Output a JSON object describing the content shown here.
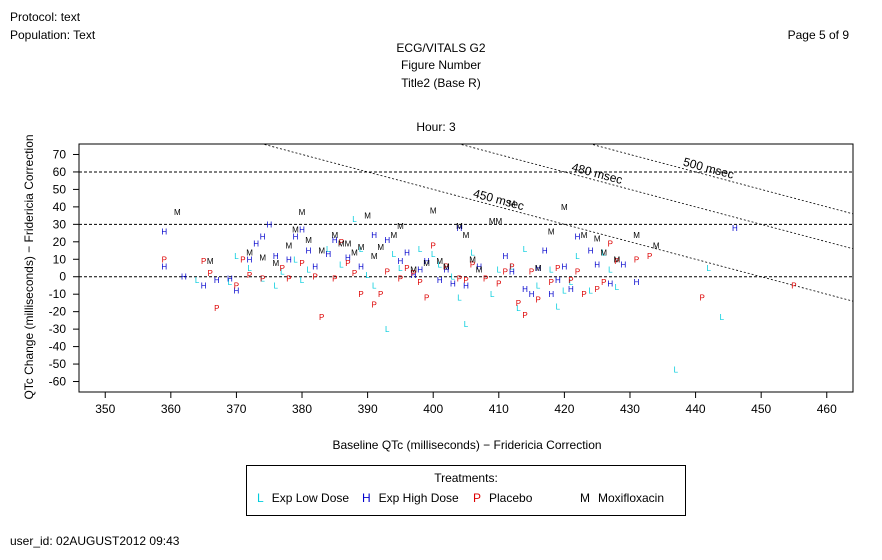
{
  "header": {
    "protocol": "Protocol: text",
    "population": "Population: Text",
    "page": "Page 5 of 9",
    "title1": "ECG/VITALS G2",
    "title2": "Figure Number",
    "title3": "Title2 (Base R)"
  },
  "footer": {
    "user_id": "user_id:  02AUGUST2012 09:43"
  },
  "colors": {
    "L": "#00ccdd",
    "H": "#0000cc",
    "P": "#dd0000",
    "M": "#000000"
  },
  "chart_data": {
    "type": "scatter",
    "title": "Hour: 3",
    "xlabel": "Baseline QTc (milliseconds) − Fridericia Correction",
    "ylabel": "QTc Change (milliseconds) − Fridericia Correction",
    "xlim": [
      346,
      464
    ],
    "ylim": [
      -66,
      76
    ],
    "xticks": [
      350,
      360,
      370,
      380,
      390,
      400,
      410,
      420,
      430,
      440,
      450,
      460
    ],
    "yticks": [
      70,
      60,
      50,
      40,
      30,
      20,
      10,
      0,
      -10,
      -20,
      -30,
      -40,
      -50,
      -60
    ],
    "hlines": [
      60,
      30,
      0
    ],
    "reference_lines": [
      {
        "label": "450 msec",
        "sum": 450
      },
      {
        "label": "480 msec",
        "sum": 480
      },
      {
        "label": "500 msec",
        "sum": 500
      }
    ],
    "legend": {
      "title": "Treatments:",
      "items": [
        {
          "marker": "L",
          "label": "Exp Low Dose"
        },
        {
          "marker": "H",
          "label": "Exp High Dose"
        },
        {
          "marker": "P",
          "label": "Placebo"
        },
        {
          "marker": "M",
          "label": "Moxifloxacin"
        }
      ]
    },
    "series": [
      {
        "marker": "L",
        "points": [
          [
            364,
            -2
          ],
          [
            369,
            -3
          ],
          [
            370,
            12
          ],
          [
            372,
            5
          ],
          [
            374,
            -1
          ],
          [
            376,
            -5
          ],
          [
            377,
            3
          ],
          [
            379,
            10
          ],
          [
            380,
            -2
          ],
          [
            381,
            4
          ],
          [
            384,
            16
          ],
          [
            386,
            7
          ],
          [
            388,
            33
          ],
          [
            389,
            16
          ],
          [
            390,
            1
          ],
          [
            391,
            -5
          ],
          [
            393,
            -30
          ],
          [
            394,
            13
          ],
          [
            395,
            5
          ],
          [
            398,
            16
          ],
          [
            400,
            13
          ],
          [
            401,
            7
          ],
          [
            403,
            0
          ],
          [
            404,
            -12
          ],
          [
            405,
            -27
          ],
          [
            406,
            14
          ],
          [
            409,
            -10
          ],
          [
            410,
            4
          ],
          [
            412,
            6
          ],
          [
            413,
            -18
          ],
          [
            414,
            16
          ],
          [
            416,
            -5
          ],
          [
            418,
            4
          ],
          [
            419,
            -17
          ],
          [
            420,
            -8
          ],
          [
            421,
            -3
          ],
          [
            422,
            12
          ],
          [
            424,
            -8
          ],
          [
            426,
            14
          ],
          [
            427,
            4
          ],
          [
            428,
            -6
          ],
          [
            437,
            -53
          ],
          [
            442,
            5
          ],
          [
            444,
            -23
          ]
        ]
      },
      {
        "marker": "H",
        "points": [
          [
            359,
            26
          ],
          [
            359,
            6
          ],
          [
            362,
            0
          ],
          [
            365,
            -5
          ],
          [
            367,
            -2
          ],
          [
            369,
            -1
          ],
          [
            370,
            -8
          ],
          [
            372,
            10
          ],
          [
            373,
            19
          ],
          [
            374,
            23
          ],
          [
            375,
            30
          ],
          [
            376,
            12
          ],
          [
            378,
            10
          ],
          [
            379,
            23
          ],
          [
            380,
            27
          ],
          [
            381,
            15
          ],
          [
            382,
            6
          ],
          [
            384,
            13
          ],
          [
            385,
            21
          ],
          [
            387,
            11
          ],
          [
            389,
            6
          ],
          [
            391,
            24
          ],
          [
            393,
            21
          ],
          [
            395,
            9
          ],
          [
            396,
            14
          ],
          [
            397,
            1
          ],
          [
            398,
            4
          ],
          [
            399,
            9
          ],
          [
            401,
            -2
          ],
          [
            402,
            4
          ],
          [
            403,
            -4
          ],
          [
            404,
            28
          ],
          [
            405,
            -5
          ],
          [
            407,
            6
          ],
          [
            411,
            12
          ],
          [
            412,
            3
          ],
          [
            414,
            -7
          ],
          [
            415,
            -10
          ],
          [
            416,
            5
          ],
          [
            417,
            15
          ],
          [
            418,
            -10
          ],
          [
            419,
            -2
          ],
          [
            420,
            6
          ],
          [
            421,
            -7
          ],
          [
            422,
            23
          ],
          [
            424,
            15
          ],
          [
            425,
            7
          ],
          [
            427,
            -4
          ],
          [
            429,
            7
          ],
          [
            431,
            -3
          ],
          [
            446,
            28
          ]
        ]
      },
      {
        "marker": "P",
        "points": [
          [
            359,
            10
          ],
          [
            365,
            9
          ],
          [
            366,
            2
          ],
          [
            367,
            -18
          ],
          [
            370,
            -5
          ],
          [
            371,
            10
          ],
          [
            372,
            1
          ],
          [
            374,
            -1
          ],
          [
            377,
            5
          ],
          [
            378,
            -1
          ],
          [
            380,
            8
          ],
          [
            382,
            0
          ],
          [
            383,
            -23
          ],
          [
            385,
            -1
          ],
          [
            386,
            20
          ],
          [
            387,
            8
          ],
          [
            388,
            2
          ],
          [
            389,
            -10
          ],
          [
            391,
            -16
          ],
          [
            392,
            -10
          ],
          [
            393,
            3
          ],
          [
            395,
            -1
          ],
          [
            396,
            5
          ],
          [
            397,
            2
          ],
          [
            398,
            -3
          ],
          [
            399,
            -12
          ],
          [
            400,
            18
          ],
          [
            402,
            6
          ],
          [
            404,
            -1
          ],
          [
            405,
            -2
          ],
          [
            406,
            7
          ],
          [
            408,
            -1
          ],
          [
            410,
            -4
          ],
          [
            411,
            3
          ],
          [
            412,
            6
          ],
          [
            413,
            -15
          ],
          [
            414,
            -22
          ],
          [
            415,
            3
          ],
          [
            416,
            -13
          ],
          [
            418,
            -3
          ],
          [
            419,
            5
          ],
          [
            421,
            -2
          ],
          [
            422,
            3
          ],
          [
            423,
            -10
          ],
          [
            425,
            -7
          ],
          [
            426,
            -3
          ],
          [
            427,
            19
          ],
          [
            428,
            9
          ],
          [
            431,
            10
          ],
          [
            433,
            12
          ],
          [
            441,
            -12
          ],
          [
            455,
            -5
          ]
        ]
      },
      {
        "marker": "M",
        "points": [
          [
            361,
            37
          ],
          [
            366,
            9
          ],
          [
            372,
            14
          ],
          [
            374,
            11
          ],
          [
            376,
            8
          ],
          [
            378,
            18
          ],
          [
            379,
            27
          ],
          [
            380,
            37
          ],
          [
            381,
            21
          ],
          [
            383,
            15
          ],
          [
            385,
            24
          ],
          [
            386,
            19
          ],
          [
            387,
            19
          ],
          [
            388,
            14
          ],
          [
            389,
            17
          ],
          [
            390,
            35
          ],
          [
            391,
            12
          ],
          [
            392,
            17
          ],
          [
            394,
            24
          ],
          [
            395,
            29
          ],
          [
            397,
            4
          ],
          [
            399,
            8
          ],
          [
            400,
            38
          ],
          [
            401,
            9
          ],
          [
            402,
            6
          ],
          [
            404,
            29
          ],
          [
            405,
            24
          ],
          [
            406,
            10
          ],
          [
            407,
            4
          ],
          [
            409,
            32
          ],
          [
            410,
            32
          ],
          [
            412,
            42
          ],
          [
            416,
            5
          ],
          [
            418,
            26
          ],
          [
            420,
            40
          ],
          [
            423,
            24
          ],
          [
            425,
            22
          ],
          [
            426,
            14
          ],
          [
            428,
            10
          ],
          [
            431,
            24
          ],
          [
            434,
            18
          ]
        ]
      }
    ]
  }
}
